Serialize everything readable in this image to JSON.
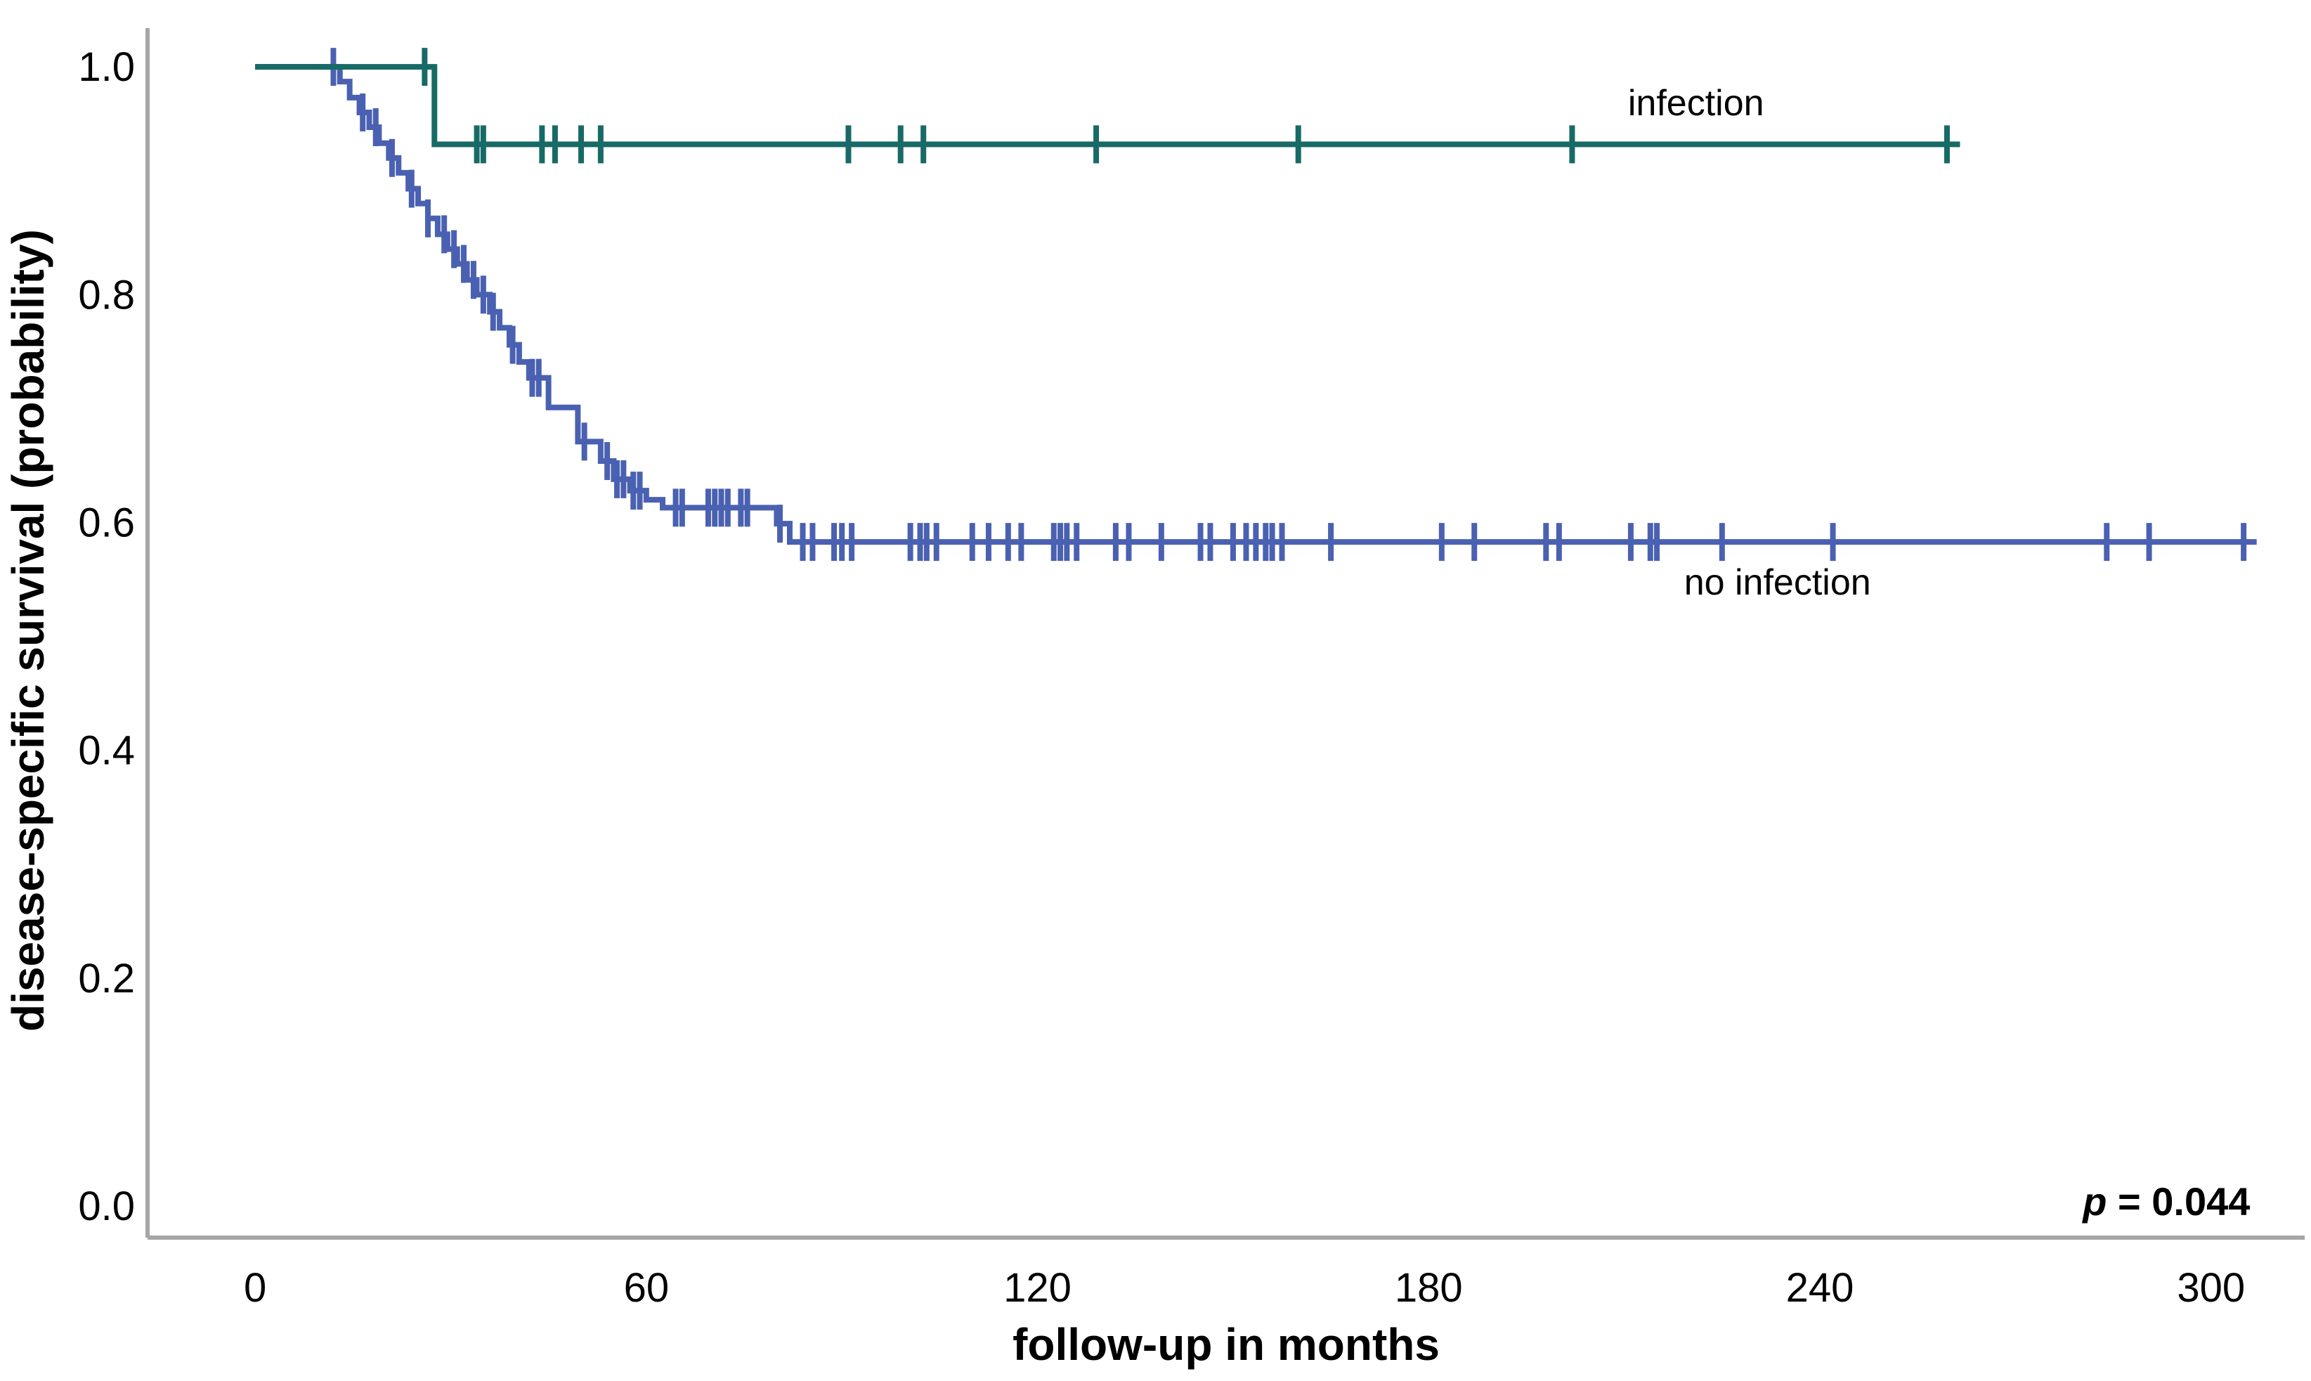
{
  "chart_data": {
    "type": "line",
    "subtype": "kaplan-meier-step",
    "title": "",
    "xlabel": "follow-up in months",
    "ylabel": "disease-specific survival (probability)",
    "x_ticks": [
      0,
      60,
      120,
      180,
      240,
      300
    ],
    "x_tick_labels": [
      "0",
      "60",
      "120",
      "180",
      "240",
      "300"
    ],
    "y_ticks": [
      0.0,
      0.2,
      0.4,
      0.6,
      0.8,
      1.0
    ],
    "y_tick_labels": [
      "0.0",
      "0.2",
      "0.4",
      "0.6",
      "0.8",
      "1.0"
    ],
    "xlim": [
      -16.5,
      313.5
    ],
    "ylim": [
      -0.0277,
      1.034
    ],
    "grid": false,
    "legend_position": "inline-labels",
    "axis_color": "#a6a6a6",
    "annotation": {
      "p_italic": "p",
      "p_rest": " = 0.044",
      "x_month": 306,
      "y_prob": -0.008
    },
    "layout": {
      "plot_left": 210,
      "plot_top": 40,
      "plot_right": 3272,
      "plot_bottom": 1761,
      "x_tick_label_y": 1852,
      "y_tick_label_x": 192,
      "x_title_x": 1745,
      "x_title_y": 1935,
      "y_title_x": 62,
      "y_title_y": 897
    },
    "series": [
      {
        "name": "no infection",
        "color": "#4a61b2",
        "label_pos": {
          "x_month": 233.5,
          "y_prob": 0.548
        },
        "steps": [
          [
            0,
            1.0
          ],
          [
            13,
            0.987
          ],
          [
            14.5,
            0.973
          ],
          [
            16,
            0.96
          ],
          [
            17.5,
            0.947
          ],
          [
            19,
            0.933
          ],
          [
            20.5,
            0.92
          ],
          [
            22,
            0.907
          ],
          [
            23.5,
            0.893
          ],
          [
            25,
            0.88
          ],
          [
            26.5,
            0.867
          ],
          [
            28,
            0.853
          ],
          [
            29.5,
            0.84
          ],
          [
            31,
            0.827
          ],
          [
            32.5,
            0.813
          ],
          [
            34,
            0.8
          ],
          [
            36,
            0.785
          ],
          [
            37.5,
            0.771
          ],
          [
            39,
            0.756
          ],
          [
            40.5,
            0.741
          ],
          [
            42,
            0.727
          ],
          [
            45,
            0.701
          ],
          [
            49.5,
            0.671
          ],
          [
            53,
            0.654
          ],
          [
            55,
            0.638
          ],
          [
            57.5,
            0.628
          ],
          [
            60,
            0.62
          ],
          [
            62.5,
            0.613
          ],
          [
            80,
            0.599
          ],
          [
            82,
            0.583
          ]
        ],
        "end_month": 307,
        "censor_months": [
          12,
          16.5,
          18.5,
          21,
          24,
          26.5,
          29,
          30.5,
          32,
          33.5,
          35,
          36.5,
          39.5,
          42.5,
          43.5,
          50.5,
          54,
          55.5,
          56.5,
          58,
          59,
          64.5,
          65.5,
          69.5,
          70.5,
          71.5,
          72.5,
          74.5,
          75.5,
          80.5,
          84,
          85.5,
          88.8,
          90,
          91.5,
          100.5,
          102,
          103,
          104.5,
          110,
          112.5,
          115.5,
          117.5,
          122.5,
          123.5,
          124.5,
          126,
          132,
          134,
          139,
          145,
          146.5,
          150,
          152,
          153.5,
          155,
          156,
          157.5,
          165,
          182,
          187,
          198,
          200,
          211,
          214,
          215,
          225,
          242,
          284,
          290.5,
          305
        ]
      },
      {
        "name": "infection",
        "color": "#176a66",
        "label_pos": {
          "x_month": 221,
          "y_prob": 0.9685
        },
        "steps": [
          [
            0,
            1.0
          ],
          [
            27.5,
            0.932
          ]
        ],
        "end_month": 261.5,
        "censor_months": [
          26,
          34,
          35,
          44,
          46,
          50,
          53,
          91,
          99,
          102.5,
          129,
          160,
          202,
          259.5
        ]
      }
    ],
    "style": {
      "curve_stroke": 8,
      "censor_half_height": 27,
      "censor_stroke": 8,
      "axis_stroke": 6
    }
  }
}
